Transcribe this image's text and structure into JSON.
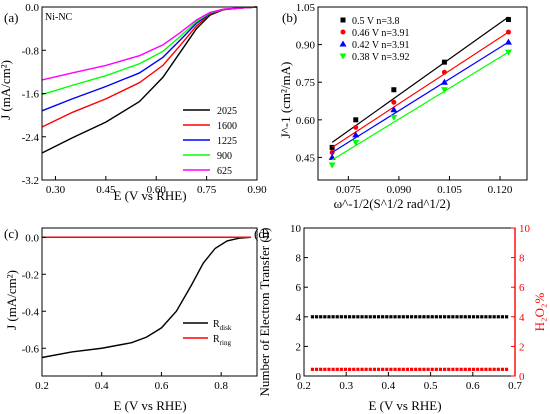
{
  "panels": {
    "a": {
      "label": "(a)",
      "sample": "Ni-NC"
    },
    "b": {
      "label": "(b)"
    },
    "c": {
      "label": "(c)"
    },
    "d": {
      "label": "(d)"
    }
  },
  "chart_data": [
    {
      "panel": "a",
      "type": "line",
      "xlabel": "E (V vs RHE)",
      "ylabel": "J (mA/cm²)",
      "xlim": [
        0.26,
        0.9
      ],
      "ylim": [
        -3.2,
        0.0
      ],
      "xticks": [
        0.3,
        0.45,
        0.6,
        0.75,
        0.9
      ],
      "yticks": [
        0.0,
        -0.8,
        -1.6,
        -2.4,
        -3.2
      ],
      "legend_position": "lower-right",
      "series": [
        {
          "name": "2025",
          "color": "#000000",
          "x": [
            0.26,
            0.35,
            0.45,
            0.55,
            0.62,
            0.67,
            0.72,
            0.76,
            0.8,
            0.85,
            0.9
          ],
          "y": [
            -2.7,
            -2.42,
            -2.13,
            -1.75,
            -1.3,
            -0.85,
            -0.4,
            -0.15,
            -0.05,
            -0.02,
            0.0
          ]
        },
        {
          "name": "1600",
          "color": "#ff0000",
          "x": [
            0.26,
            0.35,
            0.45,
            0.55,
            0.62,
            0.67,
            0.72,
            0.76,
            0.8,
            0.85,
            0.9
          ],
          "y": [
            -2.22,
            -1.95,
            -1.7,
            -1.4,
            -1.08,
            -0.72,
            -0.35,
            -0.13,
            -0.05,
            -0.02,
            0.0
          ]
        },
        {
          "name": "1225",
          "color": "#0000ff",
          "x": [
            0.26,
            0.35,
            0.45,
            0.55,
            0.62,
            0.67,
            0.72,
            0.76,
            0.8,
            0.85,
            0.9
          ],
          "y": [
            -1.92,
            -1.7,
            -1.47,
            -1.22,
            -0.93,
            -0.62,
            -0.3,
            -0.12,
            -0.04,
            -0.02,
            0.0
          ]
        },
        {
          "name": "900",
          "color": "#00ff00",
          "x": [
            0.26,
            0.35,
            0.45,
            0.55,
            0.62,
            0.67,
            0.72,
            0.76,
            0.8,
            0.85,
            0.9
          ],
          "y": [
            -1.62,
            -1.45,
            -1.27,
            -1.05,
            -0.82,
            -0.55,
            -0.27,
            -0.11,
            -0.04,
            -0.02,
            0.0
          ]
        },
        {
          "name": "625",
          "color": "#ff00ff",
          "x": [
            0.26,
            0.35,
            0.45,
            0.55,
            0.62,
            0.67,
            0.72,
            0.76,
            0.8,
            0.85,
            0.9
          ],
          "y": [
            -1.35,
            -1.22,
            -1.08,
            -0.9,
            -0.7,
            -0.48,
            -0.24,
            -0.1,
            -0.04,
            -0.02,
            0.0
          ]
        }
      ]
    },
    {
      "panel": "b",
      "type": "scatter",
      "xlabel": "ω^-1/2(S^1/2 rad^1/2)",
      "ylabel": "J^-1 (cm²/mA)",
      "xlim": [
        0.066,
        0.128
      ],
      "ylim": [
        0.36,
        1.05
      ],
      "xticks": [
        0.075,
        0.09,
        0.105,
        0.12
      ],
      "yticks": [
        0.45,
        0.6,
        0.75,
        0.9,
        1.05
      ],
      "legend_position": "top-left",
      "fit_lines": true,
      "series": [
        {
          "name": "0.5 V  n=3.8",
          "color": "#000000",
          "marker": "square",
          "x": [
            0.0702,
            0.0772,
            0.0885,
            0.1035,
            0.1225
          ],
          "y": [
            0.49,
            0.6,
            0.72,
            0.83,
            1.0
          ],
          "fit": [
            [
              0.0702,
              0.51
            ],
            [
              0.1225,
              1.01
            ]
          ]
        },
        {
          "name": "0.46 V  n=3.91",
          "color": "#ff0000",
          "marker": "circle",
          "x": [
            0.0702,
            0.0772,
            0.0885,
            0.1035,
            0.1225
          ],
          "y": [
            0.47,
            0.57,
            0.67,
            0.79,
            0.95
          ],
          "fit": [
            [
              0.0702,
              0.49
            ],
            [
              0.1225,
              0.95
            ]
          ]
        },
        {
          "name": "0.42 V  n=3.91",
          "color": "#0000ff",
          "marker": "triangle-up",
          "x": [
            0.0702,
            0.0772,
            0.0885,
            0.1035,
            0.1225
          ],
          "y": [
            0.45,
            0.54,
            0.64,
            0.75,
            0.91
          ],
          "fit": [
            [
              0.0702,
              0.47
            ],
            [
              0.1225,
              0.91
            ]
          ]
        },
        {
          "name": "0.38 V  n=3.92",
          "color": "#00ff00",
          "marker": "triangle-down",
          "x": [
            0.0702,
            0.0772,
            0.0885,
            0.1035,
            0.1225
          ],
          "y": [
            0.42,
            0.51,
            0.61,
            0.72,
            0.87
          ],
          "fit": [
            [
              0.0702,
              0.44
            ],
            [
              0.1225,
              0.87
            ]
          ]
        }
      ]
    },
    {
      "panel": "c",
      "type": "line",
      "xlabel": "E (V vs RHE)",
      "ylabel": "J (mA/cm²)",
      "xlim": [
        0.2,
        0.92
      ],
      "ylim": [
        -0.75,
        0.05
      ],
      "xticks": [
        0.2,
        0.4,
        0.6,
        0.8
      ],
      "yticks": [
        0.0,
        -0.2,
        -0.4,
        -0.6
      ],
      "legend_position": "lower-right",
      "series": [
        {
          "name": "R_disk",
          "color": "#000000",
          "x": [
            0.2,
            0.3,
            0.4,
            0.5,
            0.55,
            0.6,
            0.65,
            0.7,
            0.74,
            0.78,
            0.82,
            0.86,
            0.9
          ],
          "y": [
            -0.65,
            -0.62,
            -0.6,
            -0.57,
            -0.54,
            -0.49,
            -0.4,
            -0.26,
            -0.14,
            -0.06,
            -0.02,
            -0.005,
            0.0
          ]
        },
        {
          "name": "R_ring",
          "color": "#ff0000",
          "x": [
            0.2,
            0.9
          ],
          "y": [
            0.0,
            0.0
          ]
        }
      ]
    },
    {
      "panel": "d",
      "type": "scatter",
      "xlabel": "E (V vs RHE)",
      "ylabel": "Number of  Electron Transfer (n)",
      "y2label": "H₂O₂%",
      "xlim": [
        0.2,
        0.7
      ],
      "ylim": [
        0,
        10
      ],
      "y2lim": [
        0,
        10
      ],
      "xticks": [
        0.2,
        0.3,
        0.4,
        0.5,
        0.6,
        0.7
      ],
      "yticks": [
        0,
        2,
        4,
        6,
        8,
        10
      ],
      "y2ticks": [
        0,
        2,
        4,
        6,
        8,
        10
      ],
      "series": [
        {
          "name": "n",
          "color": "#000000",
          "marker": "square",
          "axis": "left",
          "x_range": [
            0.22,
            0.68
          ],
          "count": 48,
          "value": 4.0
        },
        {
          "name": "H2O2%",
          "color": "#ff0000",
          "marker": "square",
          "axis": "right",
          "x_range": [
            0.22,
            0.68
          ],
          "count": 48,
          "value": 0.45
        }
      ]
    }
  ]
}
